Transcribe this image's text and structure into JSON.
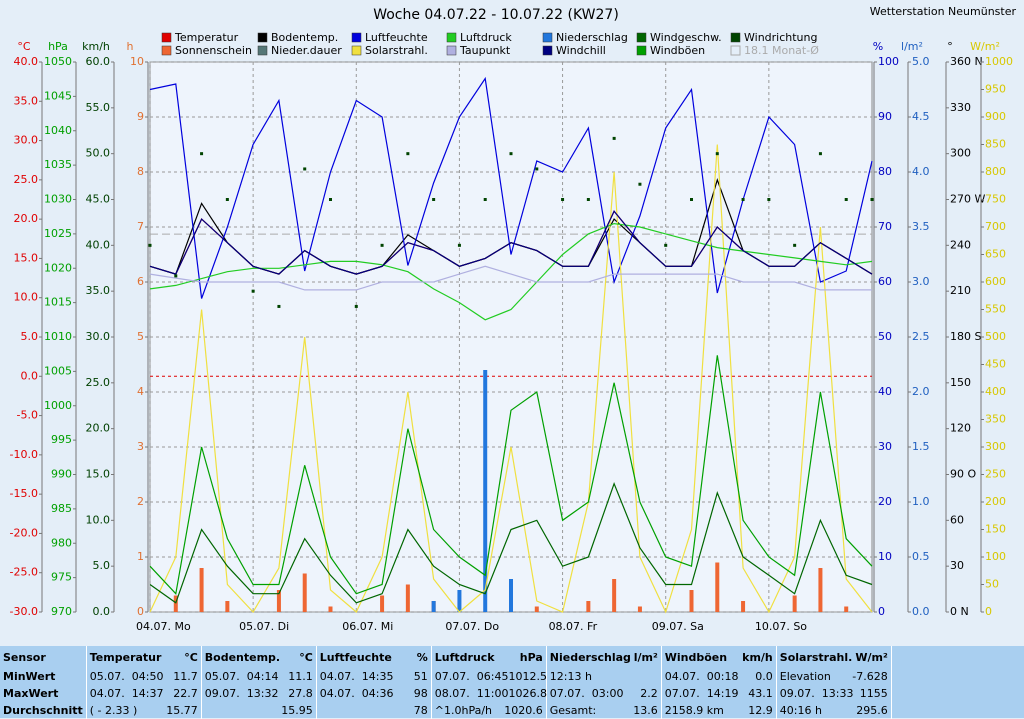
{
  "chart_data": {
    "type": "line",
    "title": "Woche 04.07.22 - 10.07.22 (KW27)",
    "station": "Wetterstation Neumünster",
    "xlim": [
      0,
      168
    ],
    "xticks": [
      {
        "value": 0,
        "label": "04.07.  Mo"
      },
      {
        "value": 24,
        "label": "05.07.  Di"
      },
      {
        "value": 48,
        "label": "06.07.  Mi"
      },
      {
        "value": 72,
        "label": "07.07.  Do"
      },
      {
        "value": 96,
        "label": "08.07.  Fr"
      },
      {
        "value": 120,
        "label": "09.07.  Sa"
      },
      {
        "value": 144,
        "label": "10.07.  So"
      }
    ],
    "grid": true,
    "monthly_avg": {
      "label": "18.1 Monat-Ø",
      "value": 18.1,
      "axis": "temp",
      "color": "#aaaaaa"
    },
    "zero_line": {
      "value": 0,
      "axis": "temp",
      "color": "#dd0000"
    },
    "axes": [
      {
        "id": "temp",
        "unit": "°C",
        "side": "left",
        "color": "#e00000",
        "lim": [
          -30,
          40
        ],
        "ticks": [
          {
            "value": 40,
            "label": "40.0"
          },
          {
            "value": 35,
            "label": "35.0"
          },
          {
            "value": 30,
            "label": "30.0"
          },
          {
            "value": 25,
            "label": "25.0"
          },
          {
            "value": 20,
            "label": "20.0"
          },
          {
            "value": 15,
            "label": "15.0"
          },
          {
            "value": 10,
            "label": "10.0"
          },
          {
            "value": 5,
            "label": "5.0"
          },
          {
            "value": 0,
            "label": "0.0"
          },
          {
            "value": -5,
            "label": "-5.0"
          },
          {
            "value": -10,
            "label": "-10.0"
          },
          {
            "value": -15,
            "label": "-15.0"
          },
          {
            "value": -20,
            "label": "-20.0"
          },
          {
            "value": -25,
            "label": "-25.0"
          },
          {
            "value": -30,
            "label": "-30.0"
          }
        ]
      },
      {
        "id": "press",
        "unit": "hPa",
        "side": "left",
        "color": "#00a000",
        "lim": [
          970,
          1050
        ],
        "ticks": [
          1050,
          1045,
          1040,
          1035,
          1030,
          1025,
          1020,
          1015,
          1010,
          1005,
          1000,
          995,
          990,
          985,
          980,
          975,
          970
        ]
      },
      {
        "id": "wind",
        "unit": "km/h",
        "side": "left",
        "color": "#004000",
        "lim": [
          0,
          60
        ],
        "ticks": [
          {
            "value": 60,
            "label": "60.0"
          },
          {
            "value": 55,
            "label": "55.0"
          },
          {
            "value": 50,
            "label": "50.0"
          },
          {
            "value": 45,
            "label": "45.0"
          },
          {
            "value": 40,
            "label": "40.0"
          },
          {
            "value": 35,
            "label": "35.0"
          },
          {
            "value": 30,
            "label": "30.0"
          },
          {
            "value": 25,
            "label": "25.0"
          },
          {
            "value": 20,
            "label": "20.0"
          },
          {
            "value": 15,
            "label": "15.0"
          },
          {
            "value": 10,
            "label": "10.0"
          },
          {
            "value": 5,
            "label": "5.0"
          },
          {
            "value": 0,
            "label": "0.0"
          }
        ]
      },
      {
        "id": "sun",
        "unit": "h",
        "side": "left",
        "color": "#e07030",
        "lim": [
          0,
          10
        ],
        "ticks": [
          10,
          9,
          8,
          7,
          6,
          5,
          4,
          3,
          2,
          1,
          0
        ]
      },
      {
        "id": "hum",
        "unit": "%",
        "side": "right",
        "color": "#0000c0",
        "lim": [
          0,
          100
        ],
        "ticks": [
          100,
          90,
          80,
          70,
          60,
          50,
          40,
          30,
          20,
          10,
          0
        ]
      },
      {
        "id": "rain",
        "unit": "l/m²",
        "side": "right",
        "color": "#2060c0",
        "lim": [
          0,
          5
        ],
        "ticks": [
          {
            "value": 5,
            "label": "5.0"
          },
          {
            "value": 4.5,
            "label": "4.5"
          },
          {
            "value": 4,
            "label": "4.0"
          },
          {
            "value": 3.5,
            "label": "3.5"
          },
          {
            "value": 3,
            "label": "3.0"
          },
          {
            "value": 2.5,
            "label": "2.5"
          },
          {
            "value": 2,
            "label": "2.0"
          },
          {
            "value": 1.5,
            "label": "1.5"
          },
          {
            "value": 1,
            "label": "1.0"
          },
          {
            "value": 0.5,
            "label": "0.5"
          },
          {
            "value": 0,
            "label": "0.0"
          }
        ]
      },
      {
        "id": "dir",
        "unit": "°",
        "side": "right",
        "color": "#000000",
        "lim": [
          0,
          360
        ],
        "ticks": [
          {
            "value": 360,
            "label": "360 N"
          },
          330,
          300,
          {
            "value": 270,
            "label": "270 W"
          },
          240,
          210,
          {
            "value": 180,
            "label": "180 S"
          },
          150,
          120,
          {
            "value": 90,
            "label": "90  O"
          },
          60,
          30,
          {
            "value": 0,
            "label": "0   N"
          }
        ]
      },
      {
        "id": "solar",
        "unit": "W/m²",
        "side": "right",
        "color": "#d8c800",
        "lim": [
          0,
          1000
        ],
        "ticks": [
          1000,
          950,
          900,
          850,
          800,
          750,
          700,
          650,
          600,
          550,
          500,
          450,
          400,
          350,
          300,
          250,
          200,
          150,
          100,
          50,
          0
        ]
      }
    ],
    "x": [
      0,
      6,
      12,
      18,
      24,
      30,
      36,
      42,
      48,
      54,
      60,
      66,
      72,
      78,
      84,
      90,
      96,
      102,
      108,
      114,
      120,
      126,
      132,
      138,
      144,
      150,
      156,
      162,
      168
    ],
    "series": [
      {
        "name": "Temperatur",
        "color": "#e00000",
        "axis": "temp",
        "style": "line",
        "values": [
          14,
          13,
          20,
          17,
          14,
          13,
          16,
          14,
          13,
          14,
          17,
          16,
          14,
          15,
          17,
          16,
          14,
          14,
          21,
          17,
          14,
          14,
          19,
          16,
          14,
          14,
          17,
          15,
          13
        ]
      },
      {
        "name": "Sonnenschein",
        "color": "#ee6633",
        "axis": "sun",
        "style": "bar",
        "values": [
          0,
          0.3,
          0.8,
          0.2,
          0,
          0.4,
          0.7,
          0.1,
          0,
          0.3,
          0.5,
          0.2,
          0,
          0,
          0.2,
          0.1,
          0,
          0.2,
          0.6,
          0.1,
          0,
          0.4,
          0.9,
          0.2,
          0,
          0.3,
          0.8,
          0.1,
          0
        ]
      },
      {
        "name": "Bodentemp.",
        "color": "#000000",
        "axis": "temp",
        "style": "line",
        "values": [
          14,
          13,
          22,
          17,
          14,
          13,
          16,
          14,
          13,
          14,
          18,
          16,
          14,
          15,
          17,
          16,
          14,
          14,
          20,
          17,
          14,
          14,
          25,
          16,
          14,
          14,
          17,
          15,
          13
        ]
      },
      {
        "name": "Nieder.dauer",
        "color": "#557777",
        "axis": "sun",
        "style": "bar"
      },
      {
        "name": "Luftfeuchte",
        "color": "#0000dd",
        "axis": "hum",
        "style": "line",
        "values": [
          95,
          96,
          57,
          70,
          85,
          93,
          62,
          80,
          93,
          90,
          63,
          78,
          90,
          97,
          65,
          82,
          80,
          88,
          60,
          72,
          88,
          95,
          58,
          75,
          90,
          85,
          60,
          62,
          82
        ]
      },
      {
        "name": "Solarstrahl.",
        "color": "#f0e040",
        "axis": "solar",
        "style": "line",
        "values": [
          0,
          100,
          550,
          50,
          0,
          80,
          500,
          40,
          0,
          100,
          400,
          60,
          0,
          40,
          300,
          20,
          0,
          200,
          800,
          100,
          0,
          150,
          850,
          80,
          0,
          100,
          700,
          60,
          0
        ]
      },
      {
        "name": "Luftdruck",
        "color": "#22cc22",
        "axis": "press",
        "style": "line",
        "values": [
          1017,
          1017.5,
          1018.5,
          1019.5,
          1020,
          1020,
          1020.5,
          1021,
          1021,
          1020.5,
          1019.5,
          1017,
          1015,
          1012.5,
          1014,
          1018,
          1022,
          1025,
          1026.5,
          1026,
          1025,
          1024,
          1023,
          1022.5,
          1022,
          1021.5,
          1021,
          1020.5,
          1021
        ]
      },
      {
        "name": "Taupunkt",
        "color": "#b0b0e0",
        "axis": "temp",
        "style": "line",
        "values": [
          13,
          12.5,
          12,
          12,
          12,
          12,
          11,
          11,
          11,
          12,
          12,
          12,
          13,
          14,
          13,
          12,
          12,
          12,
          13,
          13,
          13,
          13,
          13,
          12,
          12,
          12,
          11,
          11,
          11
        ]
      },
      {
        "name": "Niederschlag",
        "color": "#2277dd",
        "axis": "rain",
        "style": "bar",
        "values": [
          0,
          0,
          0,
          0,
          0,
          0,
          0,
          0,
          0,
          0,
          0,
          0.1,
          0.2,
          2.2,
          0.3,
          0,
          0,
          0,
          0,
          0,
          0,
          0,
          0,
          0,
          0,
          0,
          0,
          0,
          0
        ]
      },
      {
        "name": "Windchill",
        "color": "#000080",
        "axis": "temp",
        "style": "line",
        "values": [
          14,
          13,
          20,
          17,
          14,
          13,
          16,
          14,
          13,
          14,
          17,
          16,
          14,
          15,
          17,
          16,
          14,
          14,
          21,
          17,
          14,
          14,
          19,
          16,
          14,
          14,
          17,
          15,
          13
        ]
      },
      {
        "name": "Windgeschw.",
        "color": "#006600",
        "axis": "wind",
        "style": "line",
        "values": [
          3,
          1,
          9,
          5,
          2,
          2,
          8,
          4,
          1,
          2,
          9,
          5,
          3,
          2,
          9,
          10,
          5,
          6,
          14,
          7,
          3,
          3,
          13,
          6,
          4,
          2,
          10,
          4,
          3
        ]
      },
      {
        "name": "Windböen",
        "color": "#00a000",
        "axis": "wind",
        "style": "line",
        "values": [
          5,
          2,
          18,
          8,
          3,
          3,
          16,
          6,
          2,
          3,
          20,
          9,
          6,
          4,
          22,
          24,
          10,
          12,
          25,
          12,
          6,
          5,
          28,
          10,
          6,
          4,
          24,
          8,
          5
        ]
      },
      {
        "name": "Windrichtung",
        "color": "#004400",
        "axis": "dir",
        "style": "dots",
        "values": [
          240,
          220,
          300,
          270,
          210,
          200,
          290,
          270,
          200,
          240,
          300,
          270,
          240,
          270,
          300,
          290,
          270,
          270,
          310,
          280,
          240,
          270,
          300,
          270,
          270,
          240,
          300,
          270,
          270
        ]
      }
    ]
  },
  "table": {
    "row_labels": [
      "Sensor",
      "MinWert",
      "MaxWert",
      "Durchschnitt"
    ],
    "columns": [
      {
        "name": "Temperatur",
        "unit": "°C",
        "rows": [
          {
            "label": "05.07.  04:50",
            "value": "11.7"
          },
          {
            "label": "04.07.  14:37",
            "value": "22.7"
          },
          {
            "label": "( - 2.33 )",
            "value": "15.77"
          }
        ]
      },
      {
        "name": "Bodentemp.",
        "unit": "°C",
        "rows": [
          {
            "label": "05.07.  04:14",
            "value": "11.1"
          },
          {
            "label": "09.07.  13:32",
            "value": "27.8"
          },
          {
            "value": "15.95"
          }
        ]
      },
      {
        "name": "Luftfeuchte",
        "unit": "%",
        "rows": [
          {
            "label": "04.07.  14:35",
            "value": "51"
          },
          {
            "label": "04.07.  04:36",
            "value": "98"
          },
          {
            "value": "78"
          }
        ]
      },
      {
        "name": "Luftdruck",
        "unit": "hPa",
        "rows": [
          {
            "label": "07.07.  06:45",
            "value": "1012.5"
          },
          {
            "label": "08.07.  11:00",
            "value": "1026.8"
          },
          {
            "label": "^1.0hPa/h",
            "value": "1020.6"
          }
        ]
      },
      {
        "name": "Niederschlag",
        "unit": "l/m²",
        "rows": [
          {
            "label": "12:13 h"
          },
          {
            "label": "07.07.  03:00",
            "value": "2.2"
          },
          {
            "label": "Gesamt:",
            "value": "13.6"
          }
        ]
      },
      {
        "name": "Windböen",
        "unit": "km/h",
        "rows": [
          {
            "label": "04.07.  00:18",
            "value": "0.0"
          },
          {
            "label": "07.07.  14:19",
            "value": "43.1"
          },
          {
            "label": "2158.9 km",
            "value": "12.9"
          }
        ]
      },
      {
        "name": "Solarstrahl.",
        "unit": "W/m²",
        "rows": [
          {
            "label": "Elevation",
            "value": "-7.628"
          },
          {
            "label": "09.07.  13:33",
            "value": "1155"
          },
          {
            "label": "40:16 h",
            "value": "295.6"
          }
        ]
      }
    ]
  }
}
